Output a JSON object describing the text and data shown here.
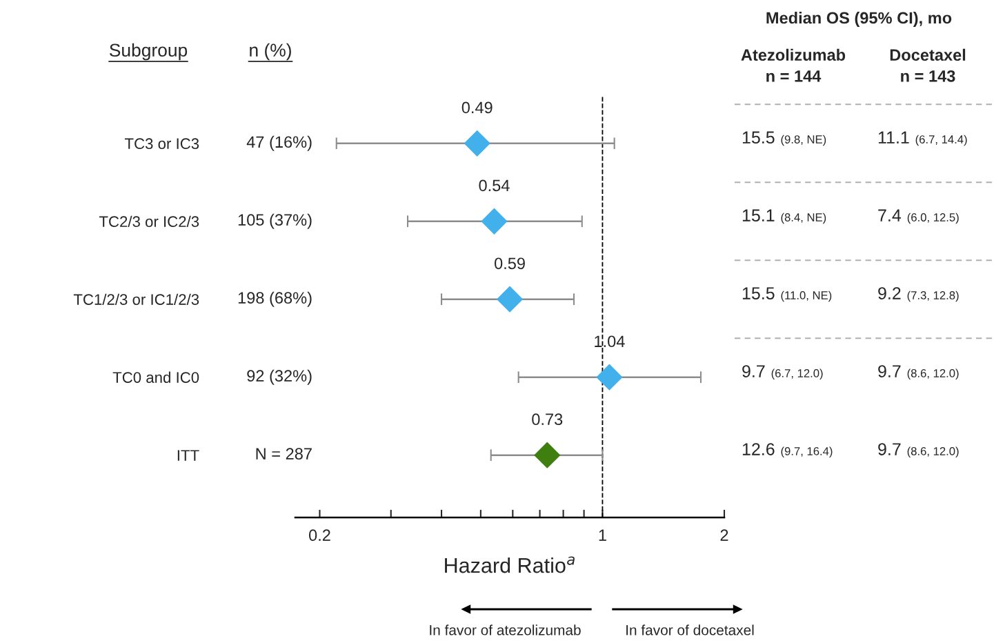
{
  "chart_data": {
    "type": "scatter",
    "orientation": "horizontal",
    "categories": [
      "TC3 or IC3",
      "TC2/3 or IC2/3",
      "TC1/2/3 or IC1/2/3",
      "TC0 and IC0",
      "ITT"
    ],
    "values": [
      0.49,
      0.54,
      0.59,
      1.04,
      0.73
    ],
    "errors": [
      [
        0.22,
        1.07
      ],
      [
        0.33,
        0.89
      ],
      [
        0.4,
        0.85
      ],
      [
        0.62,
        1.75
      ],
      [
        0.53,
        1.0
      ]
    ],
    "colors": [
      "#41b0eb",
      "#41b0eb",
      "#41b0eb",
      "#41b0eb",
      "#3f7f10"
    ],
    "marker": "diamond",
    "data_labels": true,
    "log": "x",
    "xlim": [
      0.174,
      2
    ],
    "xticks": [
      0.2,
      {
        "value": 0.3,
        "label": null
      },
      {
        "value": 0.4,
        "label": null
      },
      {
        "value": 0.5,
        "label": null
      },
      {
        "value": 0.6,
        "label": null
      },
      {
        "value": 0.7,
        "label": null
      },
      {
        "value": 0.8,
        "label": null
      },
      {
        "value": 0.9,
        "label": null
      },
      1,
      2
    ],
    "xlabel": "Hazard Ratio$^{a}$",
    "ref_lines": [
      {
        "axis": "x",
        "value": 1,
        "line_style": "dashed",
        "color": "#000000"
      }
    ],
    "grid": false,
    "legend": false,
    "annotations": [
      "Subgroup",
      "n (%)",
      "Median OS (95% CI), mo",
      "Atezolizumab\nn = 144",
      "Docetaxel\nn = 143",
      "In favor of atezolizumab",
      "In favor of docetaxel",
      "47 (16%)",
      "15.5 (9.8, NE)",
      "11.1 (6.7, 14.4)",
      "105 (37%)",
      "15.1 (8.4, NE)",
      "7.4 (6.0, 12.5)",
      "198 (68%)",
      "15.5 (11.0, NE)",
      "9.2 (7.3, 12.8)",
      "92 (32%)",
      "9.7 (6.7, 12.0)",
      "9.7 (8.6, 12.0)",
      "N = 287",
      "12.6 (9.7, 16.4)",
      "9.7 (8.6, 12.0)"
    ]
  }
}
